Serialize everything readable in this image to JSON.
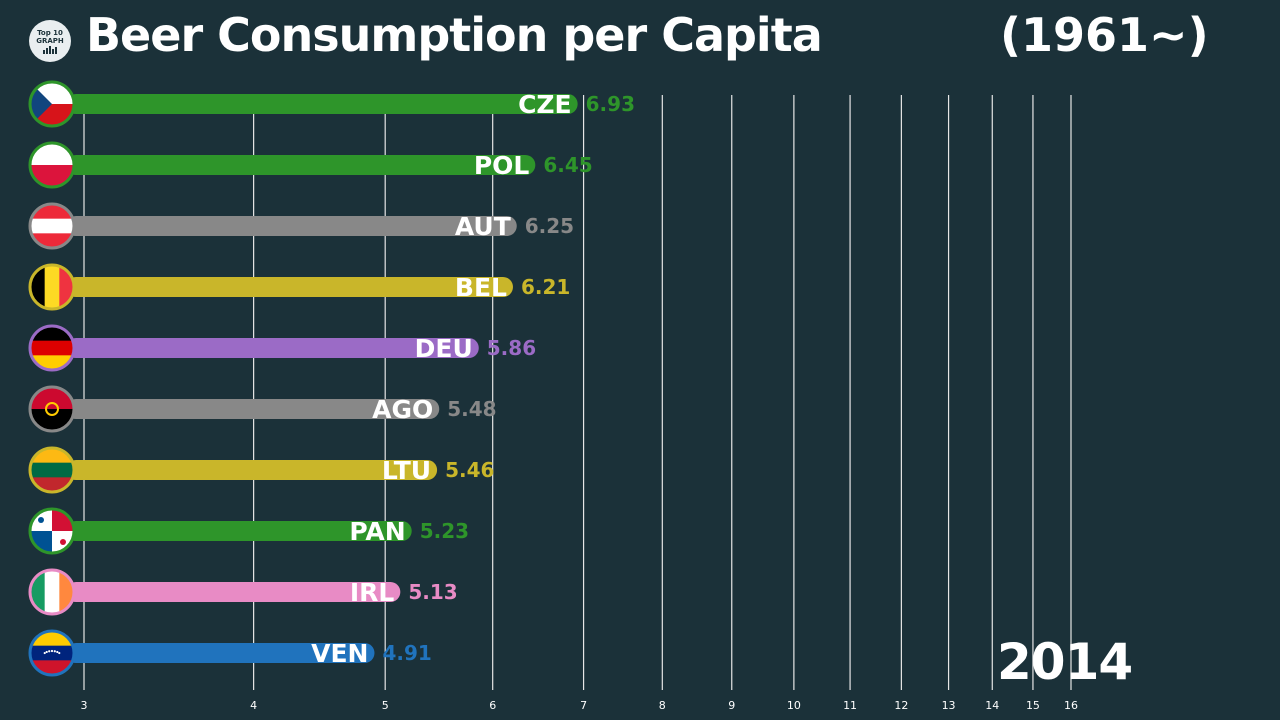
{
  "header": {
    "logo_line1": "Top 10",
    "logo_line2": "GRAPH",
    "title": "Beer Consumption per Capita",
    "subtitle": "(1961~)"
  },
  "year": "2014",
  "chart_data": {
    "type": "bar",
    "orientation": "horizontal",
    "title": "Beer Consumption per Capita",
    "categories": [
      "CZE",
      "POL",
      "AUT",
      "BEL",
      "DEU",
      "AGO",
      "LTU",
      "PAN",
      "IRL",
      "VEN"
    ],
    "values": [
      6.93,
      6.45,
      6.25,
      6.21,
      5.86,
      5.48,
      5.46,
      5.23,
      5.13,
      4.91
    ],
    "value_labels": [
      "6.93",
      "6.45",
      "6.25",
      "6.21",
      "5.86",
      "5.48",
      "5.46",
      "5.23",
      "5.13",
      "4.91"
    ],
    "colors": [
      "#2e952a",
      "#2e952a",
      "#888888",
      "#c9b62a",
      "#9b6bc6",
      "#888888",
      "#c9b62a",
      "#2e952a",
      "#e88bc5",
      "#2073bd"
    ],
    "flag_icons": [
      "czech-flag-icon",
      "poland-flag-icon",
      "austria-flag-icon",
      "belgium-flag-icon",
      "germany-flag-icon",
      "angola-flag-icon",
      "lithuania-flag-icon",
      "panama-flag-icon",
      "ireland-flag-icon",
      "venezuela-flag-icon"
    ],
    "ticks": [
      3,
      4,
      5,
      6,
      7,
      8,
      9,
      10,
      11,
      12,
      13,
      14,
      15,
      16
    ],
    "xlim": [
      3,
      16
    ],
    "scale": "log",
    "grid": true,
    "legend": "none"
  }
}
